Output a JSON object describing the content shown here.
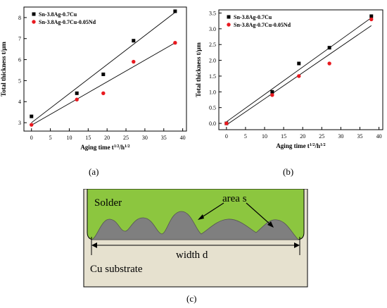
{
  "chart_data": [
    {
      "type": "scatter",
      "panel_label": "(a)",
      "xlabel": "Aging time t",
      "xlabel_sup1": "1/2",
      "xlabel_mid": "/h",
      "xlabel_sup2": "1/2",
      "ylabel": "Total thickness t/μm",
      "xlim": [
        -2,
        41
      ],
      "ylim": [
        2.6,
        8.5
      ],
      "xticks": [
        0,
        5,
        10,
        15,
        20,
        25,
        30,
        35,
        40
      ],
      "yticks": [
        3,
        4,
        5,
        6,
        7,
        8
      ],
      "legend_position": "top-left",
      "series": [
        {
          "name": "Sn-3.8Ag-0.7Cu",
          "marker": "square",
          "color": "#000000",
          "x": [
            0,
            12,
            19,
            27,
            38
          ],
          "y": [
            3.3,
            4.4,
            5.3,
            6.9,
            8.3
          ],
          "fit": {
            "x0": 0,
            "y0": 3.0,
            "x1": 38,
            "y1": 8.25
          }
        },
        {
          "name": "Sn-3.8Ag-0.7Cu-0.05Nd",
          "marker": "circle",
          "color": "#e8191f",
          "x": [
            0,
            12,
            19,
            27,
            38
          ],
          "y": [
            2.9,
            4.1,
            4.4,
            5.9,
            6.8
          ],
          "fit": {
            "x0": 0,
            "y0": 2.88,
            "x1": 38,
            "y1": 6.8
          }
        }
      ]
    },
    {
      "type": "scatter",
      "panel_label": "(b)",
      "xlabel": "Aging time t",
      "xlabel_sup1": "1/2",
      "xlabel_mid": "/h",
      "xlabel_sup2": "1/2",
      "ylabel": "Total thickness t/μm",
      "xlim": [
        -2,
        41
      ],
      "ylim": [
        -0.2,
        3.6
      ],
      "xticks": [
        0,
        5,
        10,
        15,
        20,
        25,
        30,
        35,
        40
      ],
      "yticks": [
        0.0,
        0.5,
        1.0,
        1.5,
        2.0,
        2.5,
        3.0,
        3.5
      ],
      "ytick_labels": [
        "0.0",
        "0.5",
        "1.0",
        "1.5",
        "2.0",
        "2.5",
        "3.0",
        "3.5"
      ],
      "legend_position": "top-left",
      "series": [
        {
          "name": "Sn-3.8Ag-0.7Cu",
          "marker": "square",
          "color": "#000000",
          "x": [
            0,
            12,
            19,
            27,
            38
          ],
          "y": [
            0.0,
            1.0,
            1.9,
            2.4,
            3.4
          ],
          "fit": {
            "x0": 0,
            "y0": 0.05,
            "x1": 38,
            "y1": 3.35
          }
        },
        {
          "name": "Sn-3.8Ag-0.7Cu-0.05Nd",
          "marker": "circle",
          "color": "#e8191f",
          "x": [
            0,
            12,
            19,
            27,
            38
          ],
          "y": [
            0.0,
            0.9,
            1.5,
            1.9,
            3.3
          ],
          "fit": {
            "x0": 0,
            "y0": -0.05,
            "x1": 38,
            "y1": 3.1
          }
        }
      ]
    }
  ],
  "diagram": {
    "panel_label": "(c)",
    "solder_label": "Solder",
    "area_label": "area s",
    "width_label": "width d",
    "substrate_label": "Cu substrate",
    "colors": {
      "solder": "#8cc63f",
      "imc": "#7f7f7f",
      "substrate": "#e6e1cf",
      "outline": "#000000"
    }
  }
}
